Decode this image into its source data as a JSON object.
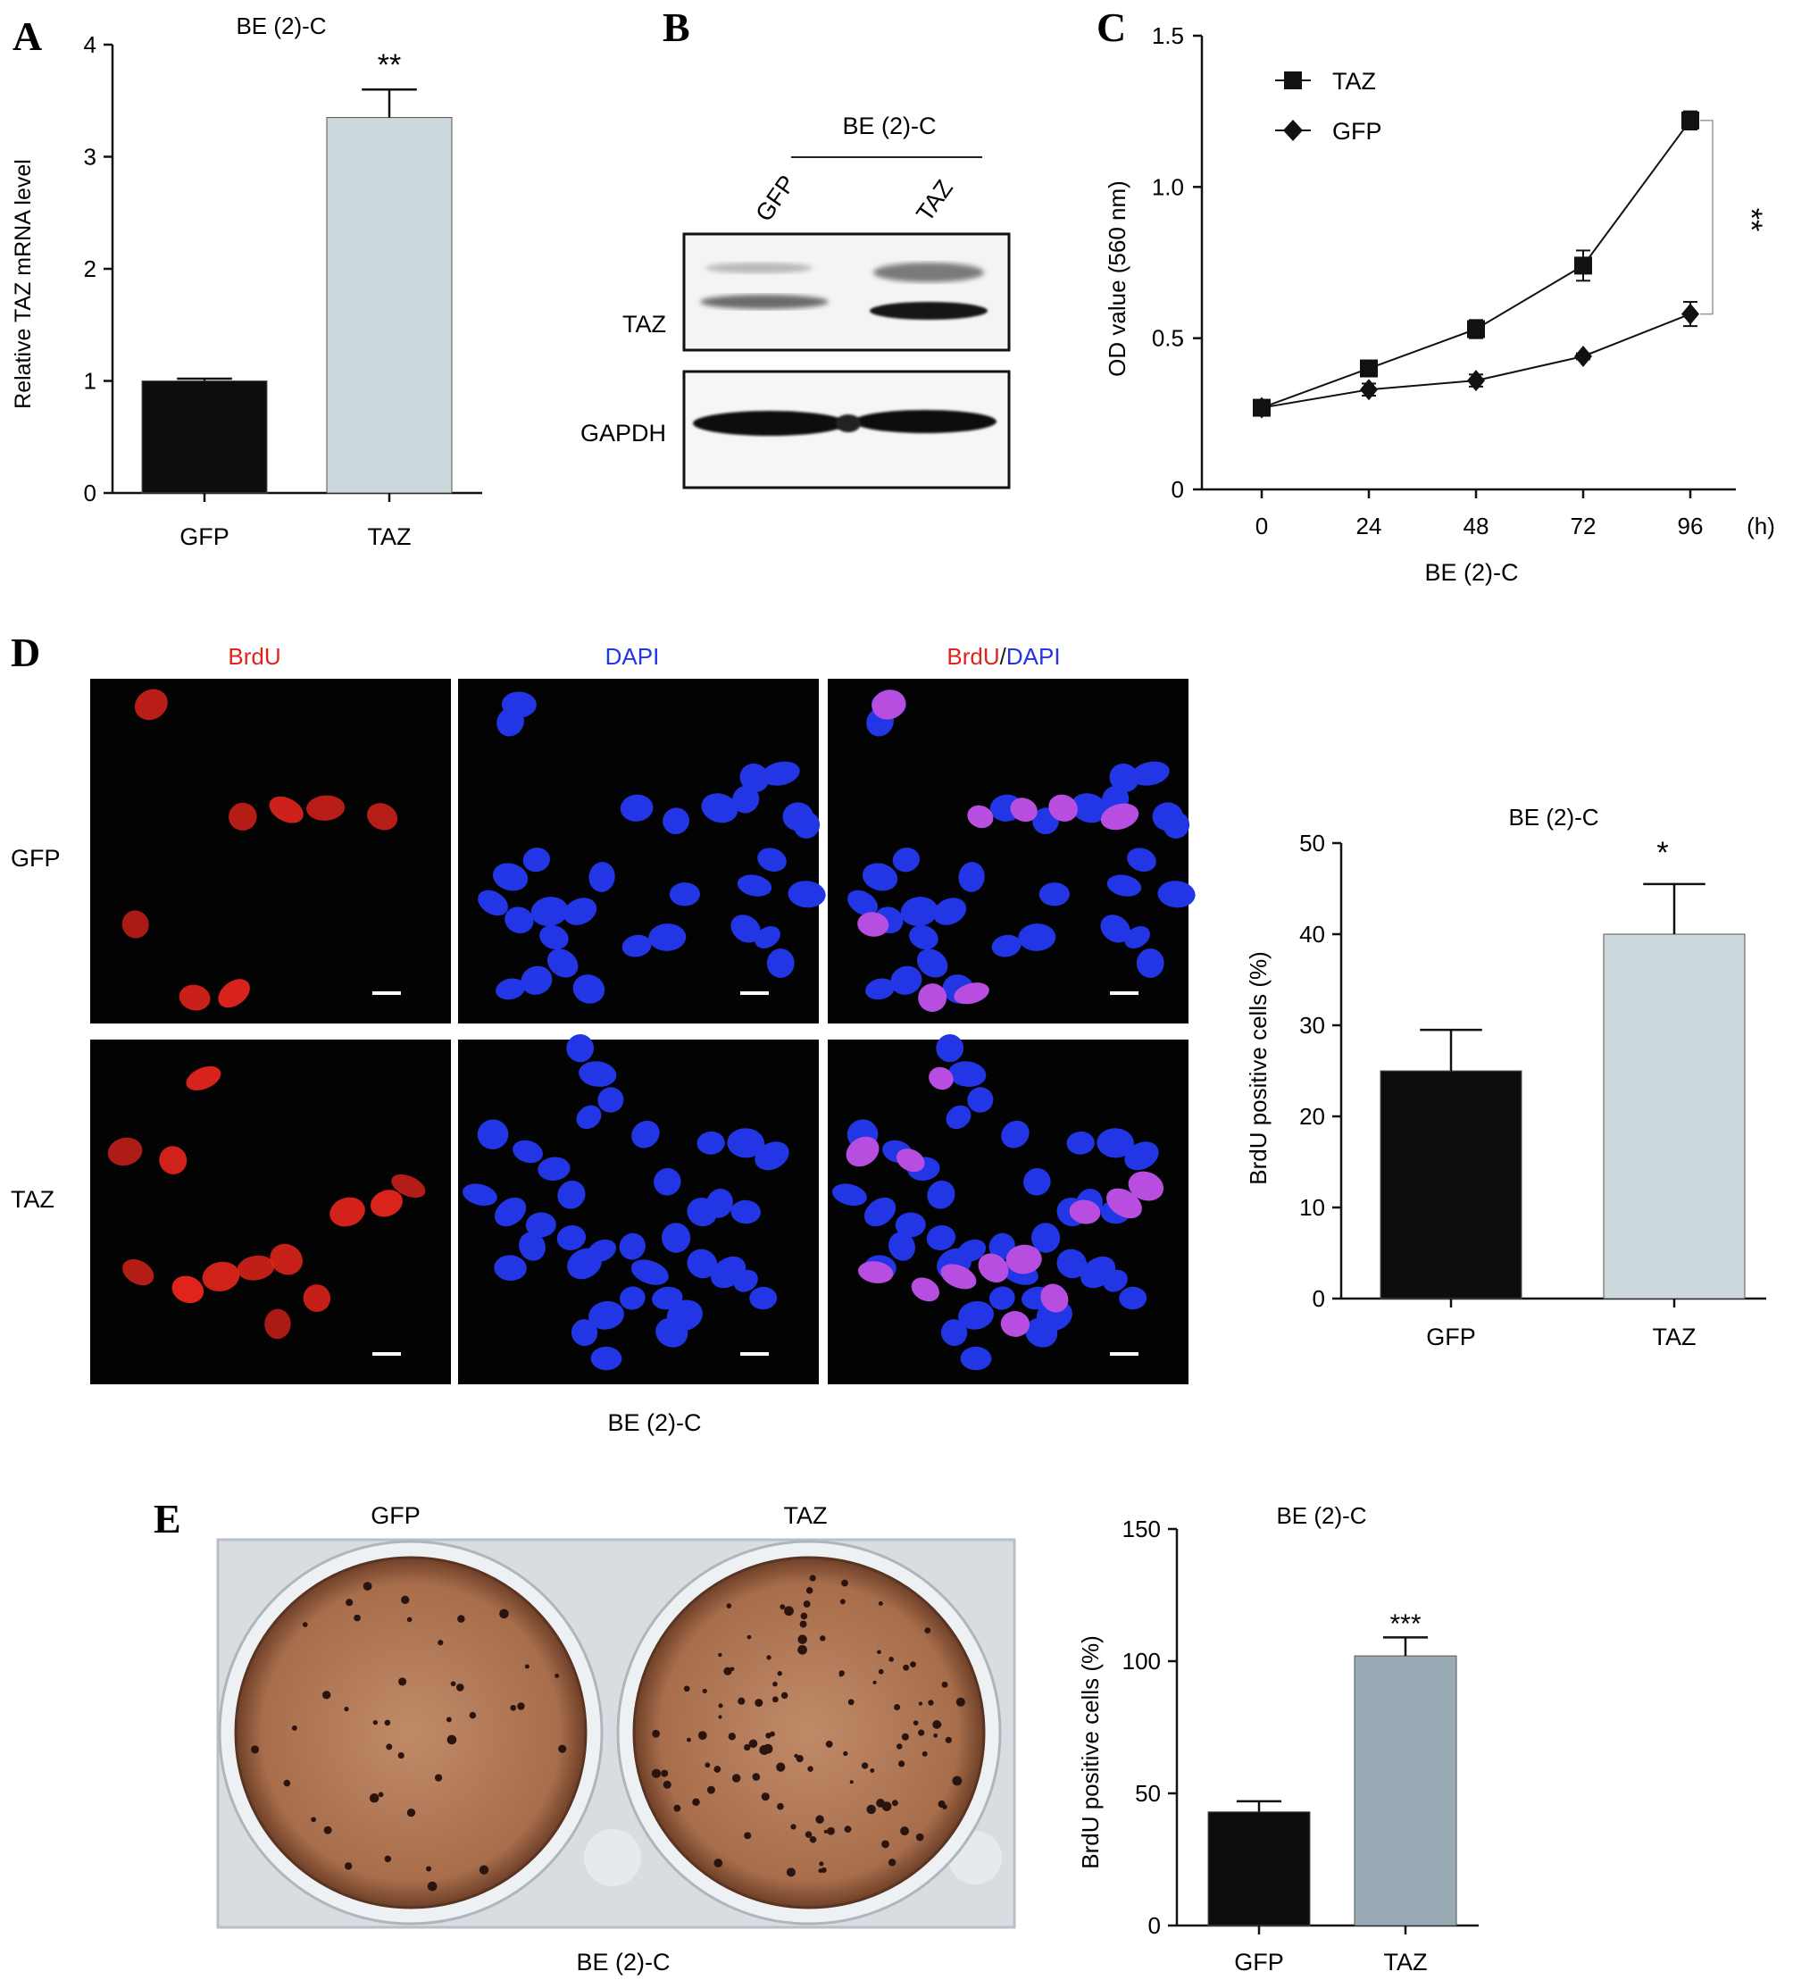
{
  "panels": {
    "A": {
      "letter": "A",
      "chart_data": {
        "type": "bar",
        "title": "BE (2)-C",
        "ylabel": "Relative TAZ mRNA level",
        "xlabel": "",
        "categories": [
          "GFP",
          "TAZ"
        ],
        "values": [
          1.0,
          3.35
        ],
        "errors": [
          0.02,
          0.25
        ],
        "ylim": [
          0,
          4
        ],
        "yticks": [
          "0",
          "1",
          "2",
          "3",
          "4"
        ],
        "significance": [
          "",
          "**"
        ],
        "colors": [
          "#0d0d0d",
          "#cdd8dc"
        ]
      }
    },
    "B": {
      "letter": "B",
      "cell_line": "BE (2)-C",
      "lanes": [
        "GFP",
        "TAZ"
      ],
      "bands": [
        "TAZ",
        "GAPDH"
      ]
    },
    "C": {
      "letter": "C",
      "chart_data": {
        "type": "line",
        "xlabel": "BE (2)-C",
        "ylabel": "OD value (560 nm)",
        "x": [
          0,
          24,
          48,
          72,
          96
        ],
        "xticks": [
          "0",
          "24",
          "48",
          "72",
          "96"
        ],
        "x_unit": "(h)",
        "ylim": [
          0,
          1.5
        ],
        "yticks": [
          "0",
          "0.5",
          "1.0",
          "1.5"
        ],
        "series": [
          {
            "name": "TAZ",
            "marker": "square",
            "values": [
              0.27,
              0.4,
              0.53,
              0.74,
              1.22
            ],
            "errors": [
              0.01,
              0.02,
              0.03,
              0.05,
              0.03
            ]
          },
          {
            "name": "GFP",
            "marker": "diamond",
            "values": [
              0.27,
              0.33,
              0.36,
              0.44,
              0.58
            ],
            "errors": [
              0.01,
              0.02,
              0.02,
              0.01,
              0.04
            ]
          }
        ],
        "significance": "**",
        "legend_position": "top-left"
      }
    },
    "D": {
      "letter": "D",
      "column_labels": [
        "BrdU",
        "DAPI",
        "BrdU",
        "/",
        "DAPI"
      ],
      "row_labels": [
        "GFP",
        "TAZ"
      ],
      "cell_line": "BE (2)-C",
      "colors": {
        "brdu": "#e0241c",
        "dapi": "#2236e6",
        "merge": "#b84ee0"
      },
      "chart_data": {
        "type": "bar",
        "title": "BE (2)-C",
        "ylabel": "BrdU positive cells (%)",
        "categories": [
          "GFP",
          "TAZ"
        ],
        "values": [
          25,
          40
        ],
        "errors": [
          4.5,
          5.5
        ],
        "ylim": [
          0,
          50
        ],
        "yticks": [
          "0",
          "10",
          "20",
          "30",
          "40",
          "50"
        ],
        "significance": [
          "",
          "*"
        ],
        "colors": [
          "#0d0d0d",
          "#cdd8dc"
        ]
      }
    },
    "E": {
      "letter": "E",
      "dish_labels": [
        "GFP",
        "TAZ"
      ],
      "cell_line": "BE (2)-C",
      "chart_data": {
        "type": "bar",
        "title": "BE (2)-C",
        "ylabel": "BrdU positive cells (%)",
        "categories": [
          "GFP",
          "TAZ"
        ],
        "values": [
          43,
          102
        ],
        "errors": [
          4,
          7
        ],
        "ylim": [
          0,
          150
        ],
        "yticks": [
          "0",
          "50",
          "100",
          "150"
        ],
        "significance": [
          "",
          "***"
        ],
        "colors": [
          "#0d0d0d",
          "#9aaab4"
        ]
      }
    }
  }
}
